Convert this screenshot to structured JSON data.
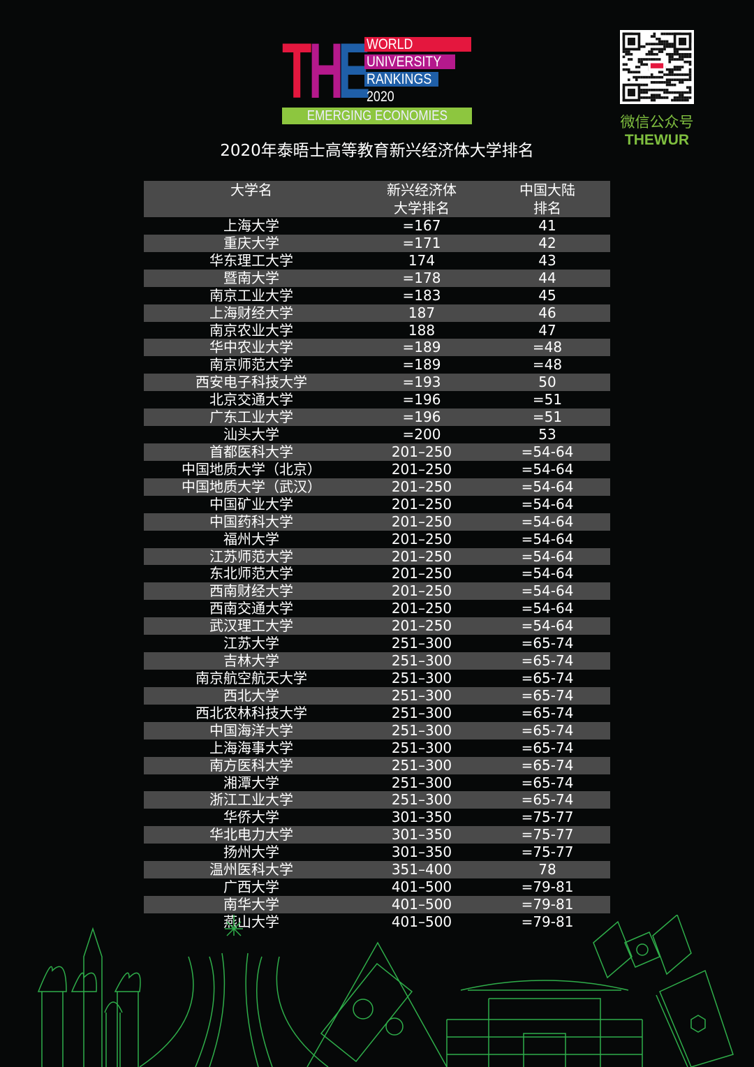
{
  "logo": {
    "big": "THE",
    "line1": "WORLD",
    "line2": "UNIVERSITY",
    "line3": "RANKINGS",
    "year": "2020",
    "edition": "EMERGING ECONOMIES",
    "colors": {
      "red": "#e4173e",
      "magenta": "#b5198c",
      "blue": "#1f5fa8",
      "green": "#8dc63f"
    }
  },
  "title": "2020年泰晤士高等教育新兴经济体大学排名",
  "wechat": {
    "label": "微信公众号",
    "account": "THEWUR",
    "qr_icon": "qr-code"
  },
  "table": {
    "headers": [
      "大学名",
      "新兴经济体\n大学排名",
      "中国大陆\n排名"
    ],
    "rows": [
      [
        "上海大学",
        "=167",
        "41"
      ],
      [
        "重庆大学",
        "=171",
        "42"
      ],
      [
        "华东理工大学",
        "174",
        "43"
      ],
      [
        "暨南大学",
        "=178",
        "44"
      ],
      [
        "南京工业大学",
        "=183",
        "45"
      ],
      [
        "上海财经大学",
        "187",
        "46"
      ],
      [
        "南京农业大学",
        "188",
        "47"
      ],
      [
        "华中农业大学",
        "=189",
        "=48"
      ],
      [
        "南京师范大学",
        "=189",
        "=48"
      ],
      [
        "西安电子科技大学",
        "=193",
        "50"
      ],
      [
        "北京交通大学",
        "=196",
        "=51"
      ],
      [
        "广东工业大学",
        "=196",
        "=51"
      ],
      [
        "汕头大学",
        "=200",
        "53"
      ],
      [
        "首都医科大学",
        "201–250",
        "=54-64"
      ],
      [
        "中国地质大学（北京）",
        "201–250",
        "=54-64"
      ],
      [
        "中国地质大学（武汉）",
        "201–250",
        "=54-64"
      ],
      [
        "中国矿业大学",
        "201–250",
        "=54-64"
      ],
      [
        "中国药科大学",
        "201–250",
        "=54-64"
      ],
      [
        "福州大学",
        "201–250",
        "=54-64"
      ],
      [
        "江苏师范大学",
        "201–250",
        "=54-64"
      ],
      [
        "东北师范大学",
        "201–250",
        "=54-64"
      ],
      [
        "西南财经大学",
        "201–250",
        "=54-64"
      ],
      [
        "西南交通大学",
        "201–250",
        "=54-64"
      ],
      [
        "武汉理工大学",
        "201–250",
        "=54-64"
      ],
      [
        "江苏大学",
        "251–300",
        "=65-74"
      ],
      [
        "吉林大学",
        "251–300",
        "=65-74"
      ],
      [
        "南京航空航天大学",
        "251–300",
        "=65-74"
      ],
      [
        "西北大学",
        "251–300",
        "=65-74"
      ],
      [
        "西北农林科技大学",
        "251–300",
        "=65-74"
      ],
      [
        "中国海洋大学",
        "251–300",
        "=65-74"
      ],
      [
        "上海海事大学",
        "251–300",
        "=65-74"
      ],
      [
        "南方医科大学",
        "251–300",
        "=65-74"
      ],
      [
        "湘潭大学",
        "251–300",
        "=65-74"
      ],
      [
        "浙江工业大学",
        "251–300",
        "=65-74"
      ],
      [
        "华侨大学",
        "301–350",
        "=75-77"
      ],
      [
        "华北电力大学",
        "301–350",
        "=75-77"
      ],
      [
        "扬州大学",
        "301–350",
        "=75-77"
      ],
      [
        "温州医科大学",
        "351–400",
        "78"
      ],
      [
        "广西大学",
        "401–500",
        "=79-81"
      ],
      [
        "南华大学",
        "401–500",
        "=79-81"
      ],
      [
        "燕山大学",
        "401–500",
        "=79-81"
      ]
    ]
  },
  "decoration": {
    "color": "#2fae4a",
    "icons": [
      "onion-dome-cathedral",
      "brasilia-cathedral",
      "pyramid-banknote",
      "chinese-gate",
      "satellite",
      "chemistry-book"
    ]
  }
}
